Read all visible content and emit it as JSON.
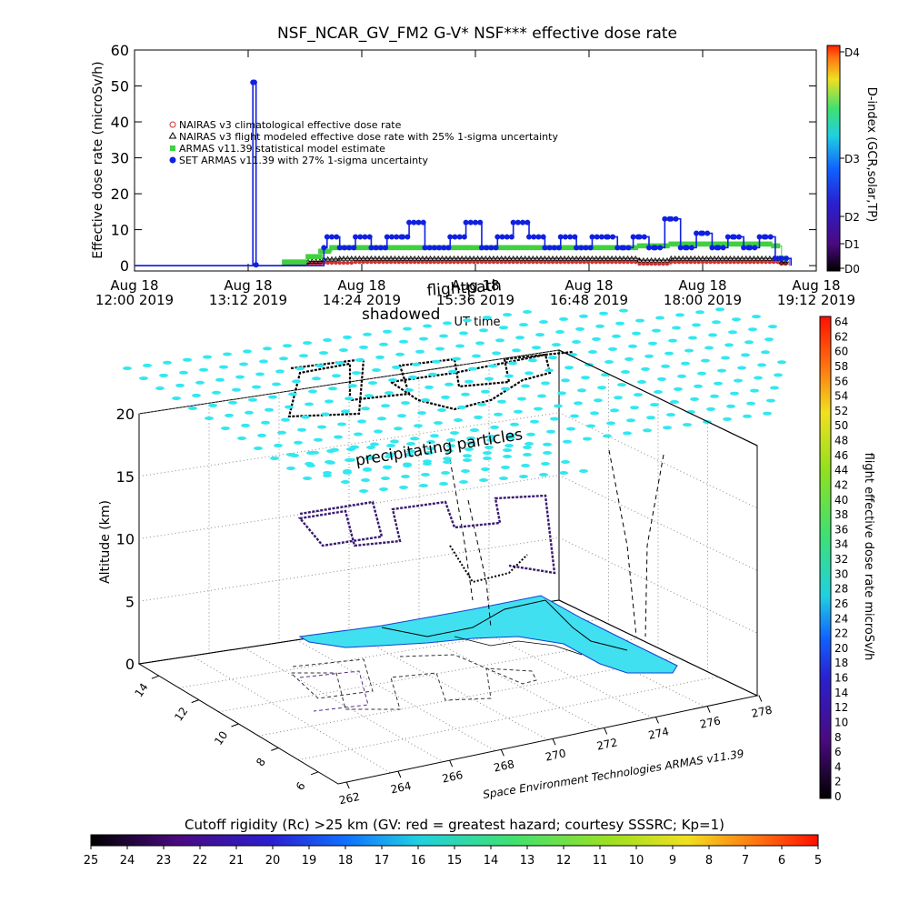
{
  "colors": {
    "nairas_clim": "#d03030",
    "nairas_flight": "#000000",
    "armas_stat": "#40d040",
    "set_armas": "#1020e0",
    "cyan_mark": "#30e8f0",
    "cutoff_fill": "#40e0f0"
  },
  "chart_data": [
    {
      "type": "line",
      "title": "NSF_NCAR_GV_FM2 G-V* NSF*** effective dose rate",
      "ylabel": "Effective dose rate (microSv/h)",
      "xlabel": "UT time",
      "ylim": [
        0,
        60
      ],
      "yticks": [
        "0",
        "10",
        "20",
        "30",
        "40",
        "50",
        "60"
      ],
      "xticks": [
        {
          "l1": "Aug 18",
          "l2": "12:00 2019",
          "t": 720
        },
        {
          "l1": "Aug 18",
          "l2": "13:12 2019",
          "t": 792
        },
        {
          "l1": "Aug 18",
          "l2": "14:24 2019",
          "t": 864
        },
        {
          "l1": "Aug 18",
          "l2": "15:36 2019",
          "t": 936
        },
        {
          "l1": "Aug 18",
          "l2": "16:48 2019",
          "t": 1008
        },
        {
          "l1": "Aug 18",
          "l2": "18:00 2019",
          "t": 1080
        },
        {
          "l1": "Aug 18",
          "l2": "19:12 2019",
          "t": 1152
        }
      ],
      "xlim_minutes_ut": [
        720,
        1152
      ],
      "legend": "top-left",
      "overlay_labels": [
        "shadowed",
        "flightpath"
      ],
      "colorbar": {
        "title": "D-index (GCR,solar,TP)",
        "labels": [
          "D0",
          "D1",
          "D2",
          "D3",
          "D4"
        ]
      },
      "series": [
        {
          "name": "NAIRAS v3 climatological effective dose rate",
          "marker": "circle",
          "x": [
            720,
            800,
            815,
            830,
            840,
            850,
            860,
            900,
            950,
            1000,
            1030,
            1040,
            1060,
            1100,
            1120,
            1130,
            1135
          ],
          "y": [
            0,
            0,
            0.3,
            0.5,
            0.8,
            0.8,
            1.0,
            1.0,
            1.0,
            1.0,
            1.0,
            0.5,
            1.0,
            1.0,
            1.0,
            0.5,
            0
          ]
        },
        {
          "name": "NAIRAS v3 flight modeled effective dose rate with 25% 1-sigma uncertainty",
          "marker": "triangle",
          "x": [
            720,
            800,
            815,
            830,
            840,
            850,
            860,
            900,
            950,
            1000,
            1030,
            1040,
            1060,
            1100,
            1120,
            1130,
            1135
          ],
          "y": [
            0,
            0,
            0.5,
            1.2,
            1.8,
            2.0,
            2.0,
            2.0,
            2.0,
            2.0,
            2.0,
            1.5,
            2.0,
            2.0,
            2.0,
            1.0,
            0
          ]
        },
        {
          "name": "ARMAS v11.39 statistical model estimate",
          "marker": "square",
          "x": [
            720,
            800,
            815,
            830,
            838,
            845,
            850,
            860,
            900,
            950,
            1000,
            1030,
            1040,
            1060,
            1100,
            1120,
            1125,
            1130,
            1135
          ],
          "y": [
            0,
            0,
            1.0,
            2.5,
            4.0,
            5.0,
            5.0,
            5.0,
            5.0,
            5.0,
            5.0,
            5.0,
            5.5,
            6.0,
            6.0,
            6.0,
            5.5,
            2.0,
            0
          ]
        },
        {
          "name": "SET ARMAS v11.39 with 27% 1-sigma uncertainty",
          "marker": "circle",
          "x": [
            720,
            794,
            795,
            796,
            797,
            798,
            830,
            840,
            842,
            848,
            850,
            856,
            860,
            866,
            870,
            876,
            880,
            890,
            894,
            900,
            904,
            910,
            920,
            926,
            930,
            936,
            940,
            946,
            950,
            956,
            960,
            966,
            970,
            976,
            980,
            986,
            990,
            996,
            1000,
            1006,
            1010,
            1020,
            1026,
            1030,
            1036,
            1040,
            1046,
            1050,
            1056,
            1060,
            1066,
            1070,
            1076,
            1080,
            1086,
            1090,
            1096,
            1100,
            1106,
            1110,
            1116,
            1120,
            1126,
            1130,
            1136
          ],
          "y": [
            0,
            0,
            51,
            51,
            0.2,
            0,
            0,
            5,
            8,
            8,
            5,
            5,
            8,
            8,
            5,
            5,
            8,
            8,
            12,
            12,
            5,
            5,
            8,
            8,
            12,
            12,
            5,
            5,
            8,
            8,
            12,
            12,
            8,
            8,
            5,
            5,
            8,
            8,
            5,
            5,
            8,
            8,
            5,
            5,
            8,
            8,
            5,
            5,
            13,
            13,
            5,
            5,
            9,
            9,
            5,
            5,
            8,
            8,
            5,
            5,
            8,
            8,
            2,
            2,
            0
          ]
        }
      ]
    },
    {
      "type": "scatter",
      "title": "",
      "zlabel": "Altitude (km)",
      "zticks": [
        "0",
        "5",
        "10",
        "15",
        "20"
      ],
      "lat_ticks": [
        "14",
        "12",
        "10",
        "8",
        "6"
      ],
      "lon_ticks": [
        "262",
        "264",
        "266",
        "268",
        "270",
        "272",
        "274",
        "276",
        "278"
      ],
      "annotation": "precipitating particles",
      "credit": "Space Environment Technologies ARMAS v11.39",
      "colorbar_title": "flight effective dose rate microSv/h",
      "colorbar_labels": [
        "0",
        "2",
        "4",
        "6",
        "8",
        "10",
        "12",
        "14",
        "16",
        "18",
        "20",
        "22",
        "24",
        "26",
        "28",
        "30",
        "32",
        "34",
        "36",
        "38",
        "40",
        "42",
        "44",
        "46",
        "48",
        "50",
        "52",
        "54",
        "56",
        "58",
        "60",
        "62",
        "64"
      ]
    },
    {
      "type": "heatmap",
      "title": "Cutoff rigidity (Rc) >25 km (GV: red = greatest hazard; courtesy SSSRC; Kp=1)",
      "labels": [
        "25",
        "24",
        "23",
        "22",
        "21",
        "20",
        "19",
        "18",
        "17",
        "16",
        "15",
        "14",
        "13",
        "12",
        "11",
        "10",
        "9",
        "8",
        "7",
        "6",
        "5"
      ]
    }
  ]
}
